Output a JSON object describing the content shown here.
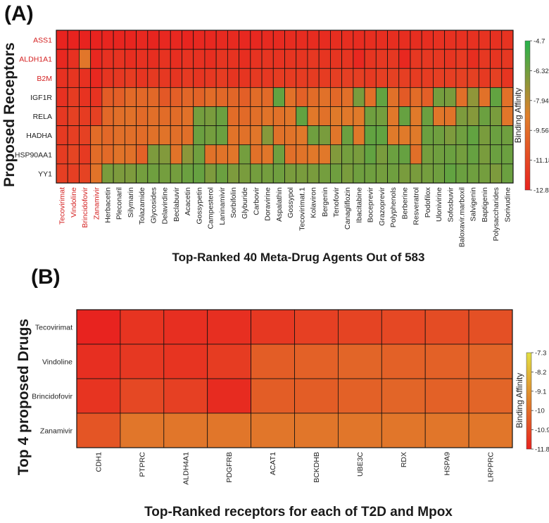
{
  "colors": {
    "red": "#e8231f",
    "orange": "#e0802b",
    "green": "#26b34c",
    "yellow": "#e2e043",
    "highlight_label": "#d42020",
    "normal_label": "#222222"
  },
  "panel_a": {
    "letter": "(A)",
    "y_title": "Proposed Receptors",
    "x_title": "Top-Ranked 40 Meta-Drug Agents Out of 583",
    "colorbar_title": "Binding Affinity",
    "colorbar_ticks": [
      "-4.7",
      "-6.32",
      "-7.94",
      "-9.56",
      "-11.18",
      "-12.8"
    ],
    "colorbar_tick_values": [
      -4.7,
      -6.32,
      -7.94,
      -9.56,
      -11.18,
      -12.8
    ],
    "highlighted_rows": [
      "ASS1",
      "ALDH1A1",
      "B2M"
    ],
    "highlighted_cols": [
      "Tecovirimat",
      "Vindoline",
      "Brincidofovir",
      "Zanamivir"
    ]
  },
  "panel_b": {
    "letter": "(B)",
    "y_title": "Top 4 proposed Drugs",
    "x_title": "Top-Ranked receptors for each of  T2D and Mpox",
    "colorbar_title": "Binding Affinity",
    "colorbar_ticks": [
      "-7.3",
      "-8.2",
      "-9.1",
      "-10",
      "-10.9",
      "-11.8"
    ],
    "colorbar_tick_values": [
      -7.3,
      -8.2,
      -9.1,
      -10,
      -10.9,
      -11.8
    ]
  },
  "chart_data": [
    {
      "type": "heatmap",
      "title": "(A)",
      "xlabel": "Top-Ranked 40 Meta-Drug Agents Out of 583",
      "ylabel": "Proposed Receptors",
      "legend_title": "Binding Affinity",
      "value_range": [
        -12.8,
        -4.7
      ],
      "rows": [
        "ASS1",
        "ALDH1A1",
        "B2M",
        "IGF1R",
        "RELA",
        "HADHA",
        "HSP90AA1",
        "YY1"
      ],
      "columns": [
        "Tecovirimat",
        "Vindoline",
        "Brincidofovir",
        "Zanamivir",
        "Herbacetin",
        "Pleconaril",
        "Silymarin",
        "Tolazamide",
        "Glycosides",
        "Delavirdine",
        "Beclabuvir",
        "Acacetin",
        "Gossypetin",
        "Campesterol",
        "Laninamivir",
        "Sorbifolin",
        "Glyburide",
        "Carbovir",
        "Doravirine",
        "Aspalathin",
        "Gossypol",
        "Tecovirimat.1",
        "Kolaviron",
        "Bergenin",
        "Tenofovir",
        "Canagliflozin",
        "Ibacitabine",
        "Boceprevir",
        "Grazoprevir",
        "Polyphenols",
        "Berberine",
        "Resveratrol",
        "Podofilox",
        "Ulonivirine",
        "Sofosbuvir",
        "Baloxavir.marboxil",
        "Salvigenin",
        "Baptigenin",
        "Polysaccharides",
        "Sorivudine"
      ],
      "values": [
        [
          -12.8,
          -12.8,
          -12.8,
          -12.8,
          -12.7,
          -12.7,
          -12.7,
          -12.6,
          -12.7,
          -12.6,
          -12.6,
          -12.7,
          -12.6,
          -12.6,
          -12.5,
          -12.5,
          -12.6,
          -12.6,
          -12.5,
          -12.5,
          -12.4,
          -12.4,
          -12.4,
          -12.4,
          -12.3,
          -12.3,
          -12.4,
          -12.3,
          -12.3,
          -12.3,
          -12.3,
          -12.3,
          -12.3,
          -12.2,
          -12.2,
          -12.2,
          -12.2,
          -12.1,
          -12.2,
          -12.1
        ],
        [
          -12.6,
          -12.2,
          -9.2,
          -12.6,
          -12.2,
          -12.1,
          -12.3,
          -12.2,
          -12.3,
          -12.1,
          -12.3,
          -12.1,
          -12.2,
          -12.3,
          -12.0,
          -12.1,
          -12.3,
          -12.1,
          -12.0,
          -12.1,
          -12.0,
          -12.0,
          -11.9,
          -12.0,
          -12.0,
          -12.0,
          -12.6,
          -12.0,
          -11.9,
          -11.9,
          -12.6,
          -11.9,
          -11.9,
          -11.9,
          -12.0,
          -11.8,
          -12.3,
          -11.9,
          -12.0,
          -11.9
        ],
        [
          -12.2,
          -12.0,
          -12.2,
          -12.6,
          -12.0,
          -11.9,
          -11.7,
          -12.0,
          -11.8,
          -11.9,
          -12.0,
          -11.8,
          -12.0,
          -11.9,
          -11.7,
          -12.0,
          -12.0,
          -11.8,
          -11.9,
          -11.7,
          -11.7,
          -11.7,
          -11.7,
          -11.7,
          -11.6,
          -11.6,
          -11.6,
          -11.8,
          -11.6,
          -11.5,
          -11.6,
          -11.7,
          -11.7,
          -11.6,
          -11.6,
          -11.5,
          -11.5,
          -11.8,
          -11.5,
          -12.0
        ],
        [
          -12.2,
          -11.7,
          -12.1,
          -12.1,
          -10.3,
          -10.2,
          -9.7,
          -9.8,
          -9.8,
          -10.5,
          -10.2,
          -9.9,
          -10.0,
          -9.6,
          -9.8,
          -9.9,
          -10.2,
          -9.6,
          -9.7,
          -6.0,
          -9.4,
          -10.1,
          -9.6,
          -9.4,
          -9.8,
          -9.5,
          -6.5,
          -9.5,
          -6.0,
          -9.4,
          -10.4,
          -9.6,
          -10.2,
          -6.4,
          -6.5,
          -9.5,
          -7.0,
          -9.4,
          -6.0,
          -9.4
        ],
        [
          -11.9,
          -11.5,
          -11.7,
          -11.5,
          -9.8,
          -9.5,
          -9.4,
          -9.7,
          -9.5,
          -9.6,
          -9.6,
          -9.4,
          -6.4,
          -6.5,
          -6.2,
          -9.6,
          -9.7,
          -9.5,
          -9.3,
          -9.4,
          -9.2,
          -6.0,
          -9.1,
          -9.4,
          -9.0,
          -9.1,
          -9.0,
          -6.3,
          -6.4,
          -9.1,
          -6.1,
          -9.0,
          -6.2,
          -9.2,
          -9.3,
          -6.6,
          -6.8,
          -6.2,
          -6.5,
          -9.2
        ],
        [
          -11.8,
          -11.6,
          -11.5,
          -9.6,
          -9.8,
          -9.5,
          -9.5,
          -9.6,
          -9.4,
          -9.3,
          -9.5,
          -9.5,
          -6.2,
          -6.4,
          -6.2,
          -9.3,
          -9.4,
          -9.2,
          -6.8,
          -9.4,
          -9.3,
          -9.1,
          -6.3,
          -6.5,
          -9.2,
          -6.2,
          -9.1,
          -6.0,
          -6.0,
          -9.0,
          -9.0,
          -9.0,
          -6.2,
          -6.3,
          -6.6,
          -6.3,
          -6.0,
          -6.5,
          -6.2,
          -6.3
        ],
        [
          -11.7,
          -11.3,
          -11.8,
          -9.6,
          -9.7,
          -9.3,
          -9.4,
          -10.1,
          -6.6,
          -6.7,
          -9.3,
          -6.9,
          -6.3,
          -9.4,
          -9.3,
          -9.2,
          -6.4,
          -9.4,
          -9.2,
          -6.3,
          -9.5,
          -9.3,
          -9.1,
          -9.1,
          -6.7,
          -6.4,
          -6.5,
          -6.0,
          -6.5,
          -6.2,
          -6.1,
          -9.5,
          -6.4,
          -6.3,
          -6.2,
          -6.4,
          -6.1,
          -6.5,
          -6.2,
          -6.2
        ],
        [
          -11.6,
          -11.6,
          -11.4,
          -9.3,
          -6.5,
          -6.6,
          -6.6,
          -6.4,
          -6.3,
          -6.4,
          -6.4,
          -6.2,
          -6.1,
          -6.6,
          -6.2,
          -6.6,
          -6.5,
          -6.4,
          -6.4,
          -6.3,
          -6.5,
          -6.5,
          -6.5,
          -6.4,
          -6.3,
          -6.5,
          -6.3,
          -6.3,
          -6.4,
          -6.3,
          -6.5,
          -6.5,
          -6.4,
          -6.3,
          -6.0,
          -6.2,
          -6.3,
          -6.4,
          -6.6,
          -6.2
        ]
      ]
    },
    {
      "type": "heatmap",
      "title": "(B)",
      "xlabel": "Top-Ranked receptors for each of  T2D and Mpox",
      "ylabel": "Top 4 proposed Drugs",
      "legend_title": "Binding Affinity",
      "value_range": [
        -11.8,
        -7.3
      ],
      "rows": [
        "Tecovirimat",
        "Vindoline",
        "Brincidofovir",
        "Zanamivir"
      ],
      "columns": [
        "CDH1",
        "PTPRC",
        "ALDH4A1",
        "PDGFRB",
        "ACAT1",
        "BCKDHB",
        "UBE3C",
        "RDX",
        "HSPA9",
        "LRPPRC"
      ],
      "values": [
        [
          -11.8,
          -11.4,
          -11.5,
          -11.5,
          -11.3,
          -11.1,
          -11.0,
          -10.9,
          -10.8,
          -10.7
        ],
        [
          -11.5,
          -11.3,
          -11.4,
          -11.2,
          -10.4,
          -10.3,
          -10.2,
          -10.3,
          -10.3,
          -10.2
        ],
        [
          -11.4,
          -10.9,
          -11.1,
          -11.6,
          -10.4,
          -10.4,
          -10.3,
          -10.2,
          -10.3,
          -10.2
        ],
        [
          -10.6,
          -9.8,
          -9.8,
          -9.8,
          -9.8,
          -9.8,
          -9.8,
          -9.8,
          -9.8,
          -9.8
        ]
      ]
    }
  ]
}
